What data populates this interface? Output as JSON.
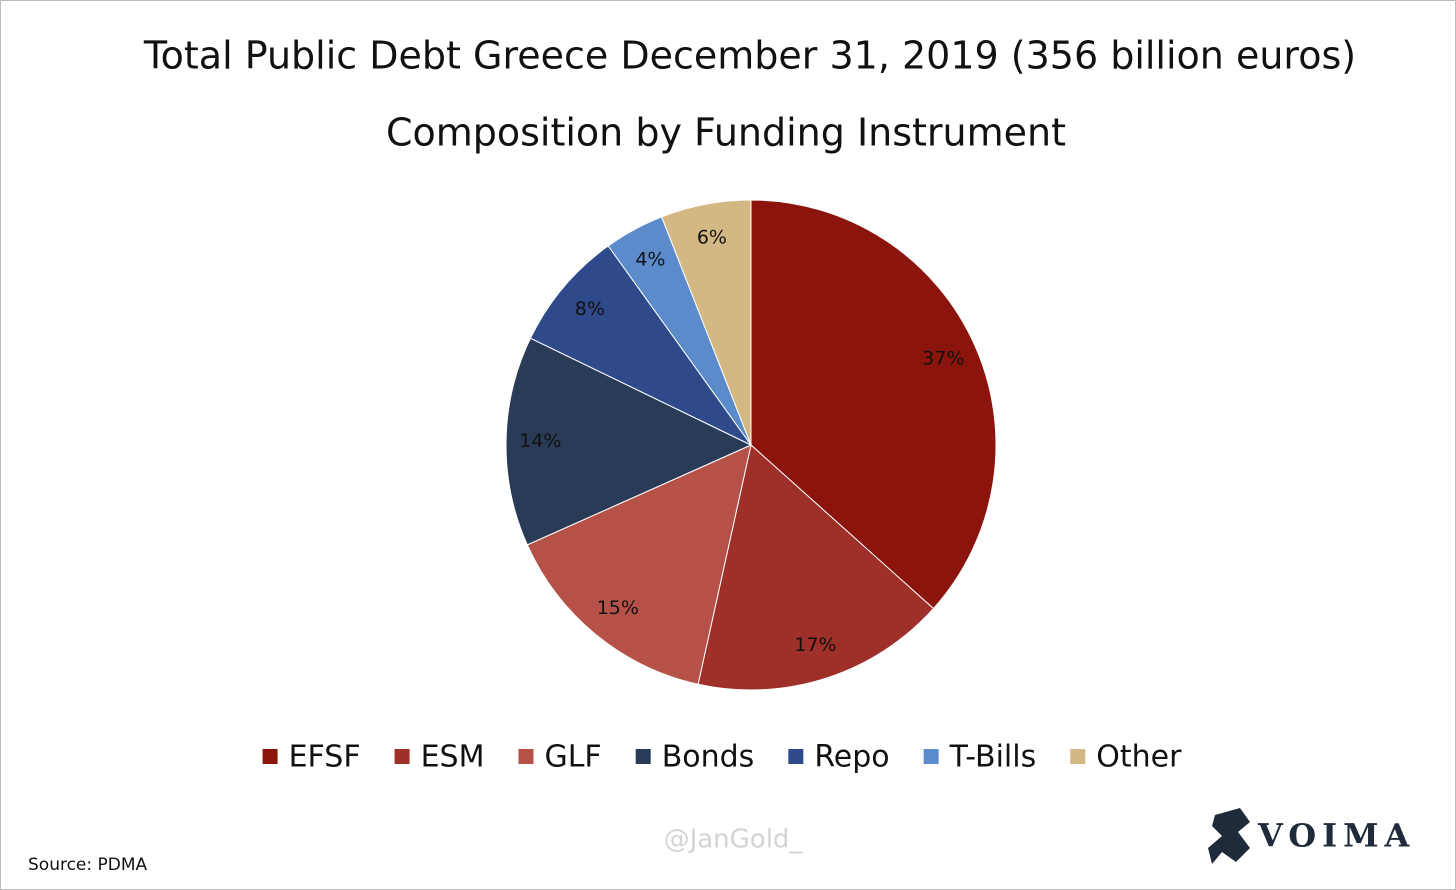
{
  "chart_data": {
    "type": "pie",
    "title": "Total Public Debt Greece December 31, 2019 (356 billion euros)",
    "subtitle": "Composition by Funding Instrument",
    "categories": [
      "EFSF",
      "ESM",
      "GLF",
      "Bonds",
      "Repo",
      "T-Bills",
      "Other"
    ],
    "values": [
      37,
      17,
      15,
      14,
      8,
      4,
      6
    ],
    "value_labels": [
      "37%",
      "17%",
      "15%",
      "14%",
      "8%",
      "4%",
      "6%"
    ],
    "colors": [
      "#8b150c",
      "#9e2f29",
      "#b65147",
      "#2a3b57",
      "#2f4a8a",
      "#5b8bcb",
      "#d3b883"
    ],
    "legend": "bottom",
    "source": "Source: PDMA",
    "watermark": "@JanGold_",
    "logo": "VOIMA"
  }
}
